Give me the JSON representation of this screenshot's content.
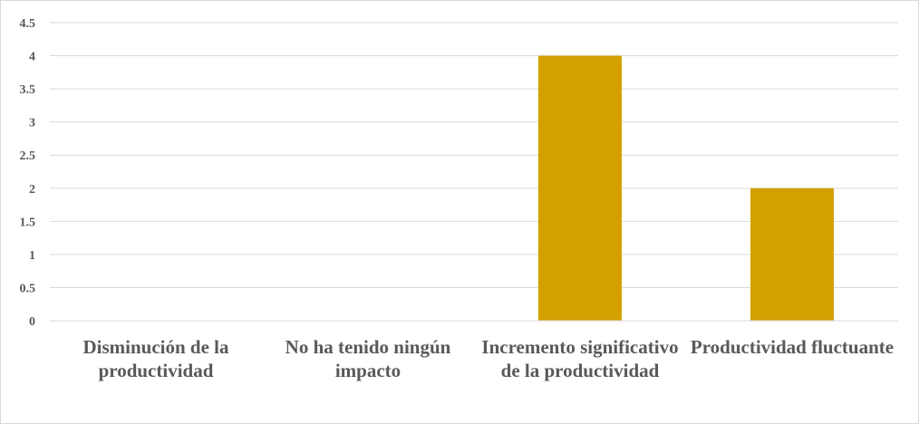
{
  "chart_data": {
    "type": "bar",
    "categories": [
      "Disminución de la productividad",
      "No ha tenido ningún impacto",
      "Incremento significativo de la productividad",
      "Productividad fluctuante"
    ],
    "values": [
      0,
      0,
      4,
      2
    ],
    "ylim": [
      0,
      4.5
    ],
    "yticks": [
      "0",
      "0.5",
      "1",
      "1.5",
      "2",
      "2.5",
      "3",
      "3.5",
      "4",
      "4.5"
    ],
    "grid": true,
    "bar_color": "#D4A000",
    "grid_color": "#D9D9D9",
    "text_color": "#595959"
  }
}
